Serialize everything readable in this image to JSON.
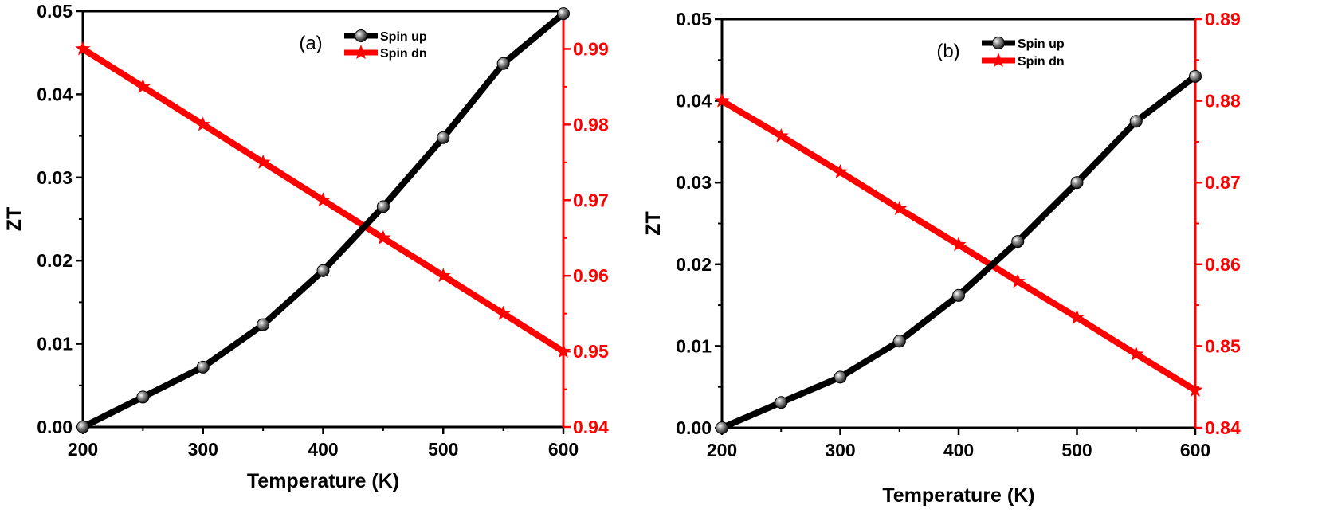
{
  "colors": {
    "spin_up": "#000000",
    "spin_dn": "#ff0000",
    "left_axis": "#000000",
    "right_axis": "#ff0000"
  },
  "chart_data": [
    {
      "type": "line",
      "panel_label": "(a)",
      "title": "",
      "xlabel": "Temperature (K)",
      "ylabel": "ZT",
      "y2label": "",
      "xlim": [
        200,
        600
      ],
      "ylim": [
        0,
        0.05
      ],
      "y2lim": [
        0.94,
        0.995
      ],
      "xticks": [
        200,
        300,
        400,
        500,
        600
      ],
      "xtick_labels": [
        "200",
        "300",
        "400",
        "500",
        "600"
      ],
      "yticks": [
        0,
        0.01,
        0.02,
        0.03,
        0.04,
        0.05
      ],
      "ytick_labels": [
        "0.00",
        "0.01",
        "0.02",
        "0.03",
        "0.04",
        "0.05"
      ],
      "y2ticks": [
        0.94,
        0.95,
        0.96,
        0.97,
        0.98,
        0.99
      ],
      "y2tick_labels": [
        "0.94",
        "0.95",
        "0.96",
        "0.97",
        "0.98",
        "0.99"
      ],
      "grid": false,
      "legend_position": "top-center",
      "x": [
        200,
        250,
        300,
        350,
        400,
        450,
        500,
        550,
        600
      ],
      "series": [
        {
          "name": "Spin up",
          "axis": "left",
          "marker": "sphere",
          "values": [
            0.0,
            0.0036,
            0.0072,
            0.0123,
            0.0188,
            0.0265,
            0.0348,
            0.0437,
            0.0497
          ]
        },
        {
          "name": "Spin dn",
          "axis": "right",
          "marker": "star",
          "values": [
            0.99,
            0.985,
            0.98,
            0.975,
            0.97,
            0.965,
            0.96,
            0.955,
            0.95
          ]
        }
      ]
    },
    {
      "type": "line",
      "panel_label": "(b)",
      "title": "",
      "xlabel": "Temperature (K)",
      "ylabel": "ZT",
      "y2label": "",
      "xlim": [
        200,
        600
      ],
      "ylim": [
        0,
        0.05
      ],
      "y2lim": [
        0.84,
        0.89
      ],
      "xticks": [
        200,
        300,
        400,
        500,
        600
      ],
      "xtick_labels": [
        "200",
        "300",
        "400",
        "500",
        "600"
      ],
      "yticks": [
        0,
        0.01,
        0.02,
        0.03,
        0.04,
        0.05
      ],
      "ytick_labels": [
        "0.00",
        "0.01",
        "0.02",
        "0.03",
        "0.04",
        "0.05"
      ],
      "y2ticks": [
        0.84,
        0.85,
        0.86,
        0.87,
        0.88,
        0.89
      ],
      "y2tick_labels": [
        "0.84",
        "0.85",
        "0.86",
        "0.87",
        "0.88",
        "0.89"
      ],
      "grid": false,
      "legend_position": "top-center",
      "x": [
        200,
        250,
        300,
        350,
        400,
        450,
        500,
        550,
        600
      ],
      "series": [
        {
          "name": "Spin up",
          "axis": "left",
          "marker": "sphere",
          "values": [
            0.0,
            0.0031,
            0.0062,
            0.0106,
            0.0162,
            0.0228,
            0.03,
            0.0375,
            0.043
          ]
        },
        {
          "name": "Spin dn",
          "axis": "right",
          "marker": "star",
          "values": [
            0.88,
            0.8757,
            0.8713,
            0.8668,
            0.8624,
            0.8579,
            0.8535,
            0.849,
            0.8446
          ]
        }
      ]
    }
  ]
}
